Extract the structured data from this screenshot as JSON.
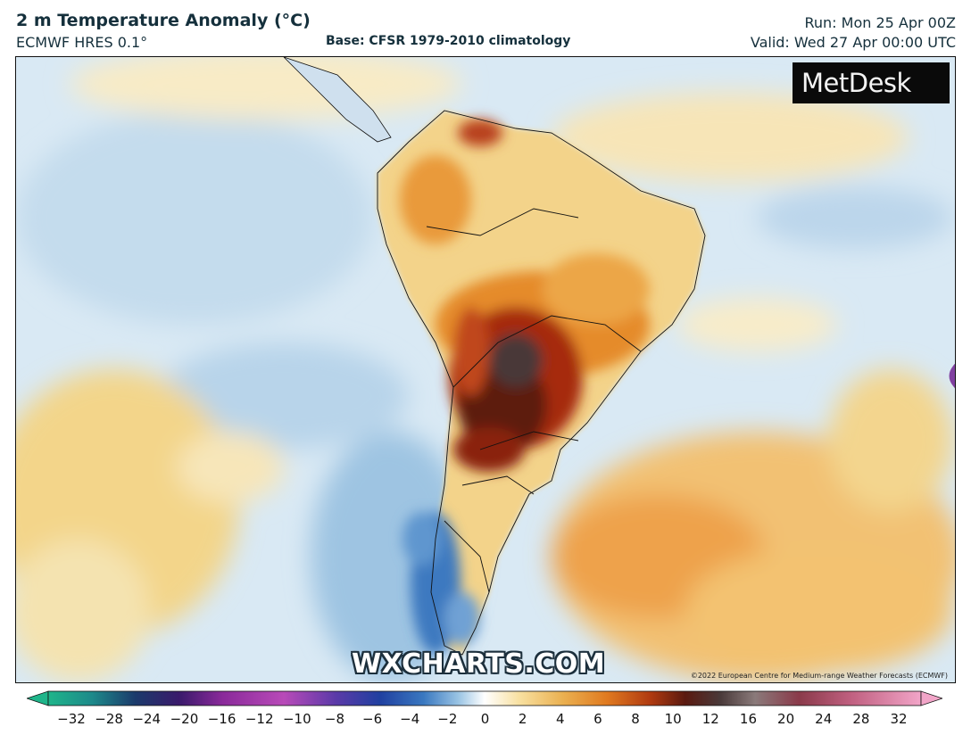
{
  "header": {
    "title": "2 m Temperature Anomaly (°C)",
    "model": "ECMWF HRES 0.1°",
    "base": "Base: CFSR 1979-2010 climatology",
    "run": "Run: Mon 25 Apr 00Z",
    "valid": "Valid: Wed 27 Apr 00:00 UTC"
  },
  "map": {
    "region": "South America",
    "logo_text": "MetDesk",
    "logo_icon": "metdesk-flower-icon",
    "watermark": "WXCHARTS.COM",
    "copyright": "©2022 European Centre for Medium-range Weather Forecasts (ECMWF)"
  },
  "colorbar": {
    "ticks": [
      "−32",
      "−28",
      "−24",
      "−20",
      "−16",
      "−12",
      "−10",
      "−8",
      "−6",
      "−4",
      "−2",
      "0",
      "2",
      "4",
      "6",
      "8",
      "10",
      "12",
      "16",
      "20",
      "24",
      "28",
      "32"
    ],
    "colors": {
      "min_arrow": "#1fb58a",
      "max_arrow": "#f2a5c8",
      "cold_deep": "#1b1f6b",
      "cold": "#2a68b5",
      "neutral": "#ffffff",
      "warm": "#e8a030",
      "hot": "#7a1a08",
      "extreme": "#5a4a4a"
    }
  }
}
